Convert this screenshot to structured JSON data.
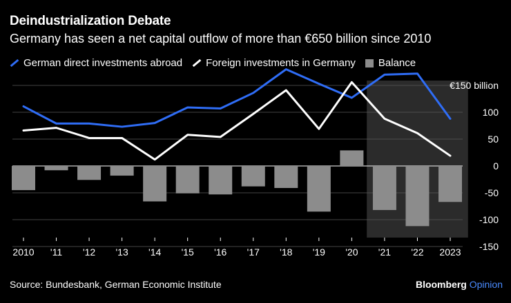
{
  "title": "Deindustrialization Debate",
  "subtitle": "Germany has seen a net capital outflow of more than €650 billion since 2010",
  "source": "Source: Bundesbank, German Economic Institute",
  "brand": {
    "name": "Bloomberg",
    "suffix": "Opinion"
  },
  "colors": {
    "abroad": "#2f6df6",
    "foreign": "#ffffff",
    "balance": "#8c8c8c",
    "shade": "#2b2b2b",
    "accent": "#4a8bff"
  },
  "chart_data": {
    "type": "bar+line",
    "categories": [
      "2010",
      "'11",
      "'12",
      "'13",
      "'14",
      "'15",
      "'16",
      "'17",
      "'18",
      "'19",
      "'20",
      "'21",
      "'22",
      "2023"
    ],
    "series": [
      {
        "name": "German direct investments abroad",
        "type": "line",
        "values": [
          111,
          79,
          79,
          73,
          80,
          109,
          107,
          136,
          180,
          153,
          127,
          170,
          172,
          88
        ]
      },
      {
        "name": "Foreign investments in Germany",
        "type": "line",
        "values": [
          66,
          71,
          52,
          52,
          12,
          58,
          54,
          97,
          141,
          69,
          156,
          88,
          61,
          19
        ]
      },
      {
        "name": "Balance",
        "type": "bar",
        "values": [
          -45,
          -8,
          -26,
          -18,
          -66,
          -51,
          -53,
          -38,
          -41,
          -85,
          29,
          -82,
          -112,
          -67
        ]
      }
    ],
    "highlight_range": [
      "'21",
      "2023"
    ],
    "ylim": [
      -155,
      180
    ],
    "yticks": [
      -150,
      -100,
      -50,
      0,
      50,
      100,
      150
    ],
    "ytick_labels": [
      "-150",
      "-100",
      "-50",
      "0",
      "50",
      "100",
      "€150 billion"
    ],
    "xlabel": "",
    "ylabel": ""
  },
  "legend": [
    {
      "label": "German direct investments abroad",
      "kind": "line",
      "color_key": "abroad"
    },
    {
      "label": "Foreign investments in Germany",
      "kind": "line",
      "color_key": "foreign"
    },
    {
      "label": "Balance",
      "kind": "box",
      "color_key": "balance"
    }
  ]
}
